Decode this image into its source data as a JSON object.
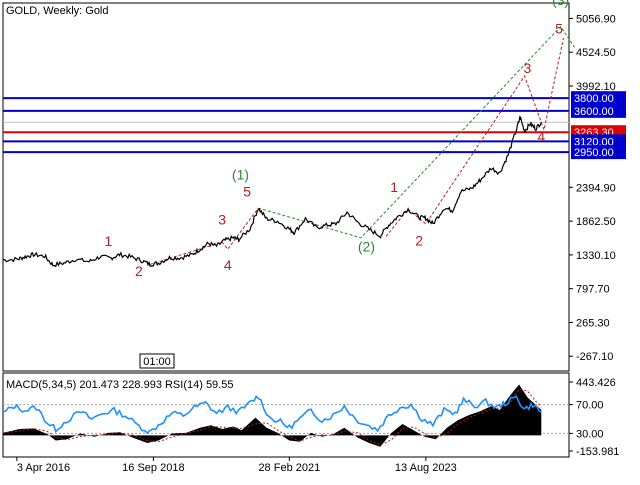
{
  "header": {
    "symbol_label": "GOLD, Weekly:  Gold"
  },
  "time_box": "01:00",
  "chart_data": [
    {
      "type": "line",
      "title": "GOLD, Weekly:  Gold",
      "ylim": [
        -500,
        5300
      ],
      "y_ticks": [
        "5056.90",
        "4524.50",
        "3992.10",
        "2394.90",
        "1862.50",
        "1330.10",
        "797.70",
        "265.30",
        "-267.10"
      ],
      "y_tick_values": [
        5056.9,
        4524.5,
        3992.1,
        2394.9,
        1862.5,
        1330.1,
        797.7,
        265.3,
        -267.1
      ],
      "x_ticks": [
        "3 Apr 2016",
        "16 Sep 2018",
        "28 Feb 2021",
        "13 Aug 2023"
      ],
      "x_tick_values": [
        2016.25,
        2018.71,
        2021.16,
        2023.62
      ],
      "xlim": [
        2016.0,
        2026.2
      ],
      "series": [
        {
          "points": [
            [
              2016.0,
              1250
            ],
            [
              2016.25,
              1260
            ],
            [
              2016.4,
              1300
            ],
            [
              2016.55,
              1335
            ],
            [
              2016.75,
              1310
            ],
            [
              2016.9,
              1170
            ],
            [
              2017.1,
              1200
            ],
            [
              2017.3,
              1260
            ],
            [
              2017.55,
              1225
            ],
            [
              2017.75,
              1300
            ],
            [
              2017.95,
              1280
            ],
            [
              2018.1,
              1335
            ],
            [
              2018.3,
              1300
            ],
            [
              2018.5,
              1240
            ],
            [
              2018.65,
              1180
            ],
            [
              2018.8,
              1200
            ],
            [
              2019.0,
              1285
            ],
            [
              2019.2,
              1285
            ],
            [
              2019.4,
              1330
            ],
            [
              2019.55,
              1420
            ],
            [
              2019.7,
              1510
            ],
            [
              2019.85,
              1470
            ],
            [
              2020.0,
              1560
            ],
            [
              2020.15,
              1600
            ],
            [
              2020.25,
              1575
            ],
            [
              2020.45,
              1740
            ],
            [
              2020.6,
              2067
            ],
            [
              2020.75,
              1900
            ],
            [
              2020.95,
              1860
            ],
            [
              2021.16,
              1740
            ],
            [
              2021.25,
              1680
            ],
            [
              2021.45,
              1900
            ],
            [
              2021.65,
              1760
            ],
            [
              2021.85,
              1800
            ],
            [
              2022.0,
              1820
            ],
            [
              2022.2,
              2000
            ],
            [
              2022.4,
              1840
            ],
            [
              2022.6,
              1730
            ],
            [
              2022.8,
              1630
            ],
            [
              2022.95,
              1800
            ],
            [
              2023.1,
              1920
            ],
            [
              2023.3,
              2050
            ],
            [
              2023.5,
              1920
            ],
            [
              2023.62,
              1910
            ],
            [
              2023.75,
              1820
            ],
            [
              2023.95,
              2070
            ],
            [
              2024.1,
              2030
            ],
            [
              2024.25,
              2330
            ],
            [
              2024.45,
              2380
            ],
            [
              2024.6,
              2510
            ],
            [
              2024.8,
              2700
            ],
            [
              2024.95,
              2620
            ],
            [
              2025.1,
              2900
            ],
            [
              2025.25,
              3300
            ],
            [
              2025.32,
              3500
            ],
            [
              2025.4,
              3280
            ],
            [
              2025.5,
              3400
            ],
            [
              2025.6,
              3320
            ],
            [
              2025.7,
              3420
            ]
          ]
        }
      ],
      "horizontal_lines": [
        {
          "value": 3800.0,
          "label": "3800.00",
          "color": "#0000cc"
        },
        {
          "value": 3600.0,
          "label": "3600.00",
          "color": "#0000cc"
        },
        {
          "value": 3263.3,
          "label": "3263.30",
          "color": "#dd0000"
        },
        {
          "value": 3120.0,
          "label": "3120.00",
          "color": "#0000cc"
        },
        {
          "value": 2950.0,
          "label": "2950.00",
          "color": "#0000cc"
        }
      ],
      "wave_labels": [
        {
          "text": "(1)",
          "x": 2020.28,
          "y": 2520,
          "color": "#2a8a2a"
        },
        {
          "text": "(2)",
          "x": 2022.55,
          "y": 1380,
          "color": "#2a8a2a"
        },
        {
          "text": "(3)",
          "x": 2026.05,
          "y": 5270,
          "color": "#2a8a2a"
        },
        {
          "text": "1",
          "x": 2017.9,
          "y": 1470,
          "color": "#b22222"
        },
        {
          "text": "2",
          "x": 2018.45,
          "y": 1000,
          "color": "#b22222"
        },
        {
          "text": "3",
          "x": 2019.95,
          "y": 1810,
          "color": "#b22222"
        },
        {
          "text": "4",
          "x": 2020.05,
          "y": 1090,
          "color": "#b22222"
        },
        {
          "text": "5",
          "x": 2020.4,
          "y": 2250,
          "color": "#b22222"
        },
        {
          "text": "1",
          "x": 2023.05,
          "y": 2320,
          "color": "#b22222"
        },
        {
          "text": "2",
          "x": 2023.5,
          "y": 1480,
          "color": "#b22222"
        },
        {
          "text": "3",
          "x": 2025.45,
          "y": 4200,
          "color": "#b22222"
        },
        {
          "text": "4",
          "x": 2025.7,
          "y": 3120,
          "color": "#b22222"
        },
        {
          "text": "5",
          "x": 2026.02,
          "y": 4820,
          "color": "#b22222"
        }
      ],
      "wave_paths": [
        {
          "color": "#2a8a2a",
          "points": [
            [
              2020.6,
              2067
            ],
            [
              2022.45,
              1600
            ],
            [
              2026.05,
              4930
            ],
            [
              2026.3,
              4600
            ]
          ]
        },
        {
          "color": "#b22222",
          "points": [
            [
              2018.65,
              1180
            ],
            [
              2019.95,
              1530
            ],
            [
              2020.05,
              1420
            ],
            [
              2020.6,
              2067
            ]
          ]
        },
        {
          "color": "#b22222",
          "points": [
            [
              2022.9,
              1620
            ],
            [
              2023.3,
              2050
            ],
            [
              2023.62,
              1820
            ],
            [
              2025.4,
              4150
            ],
            [
              2025.75,
              3300
            ],
            [
              2026.1,
              4750
            ]
          ]
        }
      ],
      "colors": {
        "price": "#000000",
        "grid": "#c0c0c0",
        "label_bg": "#0000cc",
        "label_red": "#dd0000"
      }
    },
    {
      "type": "bar",
      "title": "MACD(5,34,5) 201.473 228.993 RSI(14) 59.55",
      "indicators": [
        {
          "name": "MACD(5,34,5)",
          "values": [
            "201.473",
            "228.993"
          ]
        },
        {
          "name": "RSI(14)",
          "values": [
            "59.55"
          ]
        }
      ],
      "ylim": [
        -153.981,
        443.426
      ],
      "y_ticks": [
        "443.426",
        "70.00",
        "30.00",
        "-153.981"
      ],
      "y_tick_values": [
        443.426,
        70.0,
        30.0,
        -153.981
      ],
      "rsi_levels": [
        70,
        30
      ],
      "macd_hist": [
        [
          2016.0,
          20
        ],
        [
          2016.3,
          50
        ],
        [
          2016.55,
          55
        ],
        [
          2016.8,
          10
        ],
        [
          2016.95,
          -40
        ],
        [
          2017.15,
          -30
        ],
        [
          2017.4,
          15
        ],
        [
          2017.65,
          -10
        ],
        [
          2017.9,
          20
        ],
        [
          2018.1,
          25
        ],
        [
          2018.35,
          -20
        ],
        [
          2018.6,
          -60
        ],
        [
          2018.8,
          -40
        ],
        [
          2019.05,
          15
        ],
        [
          2019.3,
          20
        ],
        [
          2019.55,
          60
        ],
        [
          2019.75,
          80
        ],
        [
          2019.95,
          50
        ],
        [
          2020.15,
          70
        ],
        [
          2020.3,
          40
        ],
        [
          2020.55,
          140
        ],
        [
          2020.75,
          60
        ],
        [
          2020.95,
          20
        ],
        [
          2021.16,
          -40
        ],
        [
          2021.35,
          -50
        ],
        [
          2021.55,
          20
        ],
        [
          2021.75,
          -10
        ],
        [
          2021.95,
          10
        ],
        [
          2022.15,
          60
        ],
        [
          2022.4,
          -20
        ],
        [
          2022.6,
          -60
        ],
        [
          2022.8,
          -90
        ],
        [
          2023.0,
          20
        ],
        [
          2023.2,
          90
        ],
        [
          2023.4,
          40
        ],
        [
          2023.6,
          -10
        ],
        [
          2023.8,
          -30
        ],
        [
          2024.0,
          60
        ],
        [
          2024.2,
          120
        ],
        [
          2024.4,
          160
        ],
        [
          2024.6,
          190
        ],
        [
          2024.8,
          230
        ],
        [
          2024.95,
          200
        ],
        [
          2025.15,
          320
        ],
        [
          2025.3,
          400
        ],
        [
          2025.45,
          300
        ],
        [
          2025.6,
          240
        ],
        [
          2025.7,
          201.47
        ]
      ],
      "rsi": [
        [
          2016.0,
          58
        ],
        [
          2016.2,
          68
        ],
        [
          2016.4,
          62
        ],
        [
          2016.6,
          66
        ],
        [
          2016.8,
          45
        ],
        [
          2016.95,
          36
        ],
        [
          2017.15,
          48
        ],
        [
          2017.4,
          60
        ],
        [
          2017.6,
          50
        ],
        [
          2017.8,
          58
        ],
        [
          2018.0,
          62
        ],
        [
          2018.2,
          55
        ],
        [
          2018.45,
          40
        ],
        [
          2018.65,
          32
        ],
        [
          2018.85,
          45
        ],
        [
          2019.05,
          58
        ],
        [
          2019.25,
          55
        ],
        [
          2019.45,
          66
        ],
        [
          2019.65,
          72
        ],
        [
          2019.85,
          58
        ],
        [
          2020.05,
          66
        ],
        [
          2020.25,
          60
        ],
        [
          2020.45,
          72
        ],
        [
          2020.6,
          82
        ],
        [
          2020.8,
          52
        ],
        [
          2021.0,
          46
        ],
        [
          2021.16,
          38
        ],
        [
          2021.35,
          50
        ],
        [
          2021.55,
          62
        ],
        [
          2021.75,
          48
        ],
        [
          2021.95,
          55
        ],
        [
          2022.15,
          68
        ],
        [
          2022.35,
          50
        ],
        [
          2022.55,
          42
        ],
        [
          2022.75,
          35
        ],
        [
          2022.95,
          55
        ],
        [
          2023.15,
          66
        ],
        [
          2023.35,
          70
        ],
        [
          2023.55,
          50
        ],
        [
          2023.75,
          42
        ],
        [
          2023.95,
          62
        ],
        [
          2024.15,
          58
        ],
        [
          2024.3,
          76
        ],
        [
          2024.5,
          68
        ],
        [
          2024.7,
          74
        ],
        [
          2024.9,
          66
        ],
        [
          2025.05,
          72
        ],
        [
          2025.25,
          80
        ],
        [
          2025.4,
          64
        ],
        [
          2025.55,
          70
        ],
        [
          2025.7,
          59.55
        ]
      ],
      "colors": {
        "hist": "#000000",
        "rsi": "#1e90ff",
        "level": "#a0a0a0",
        "signal": "#b22222"
      }
    }
  ]
}
